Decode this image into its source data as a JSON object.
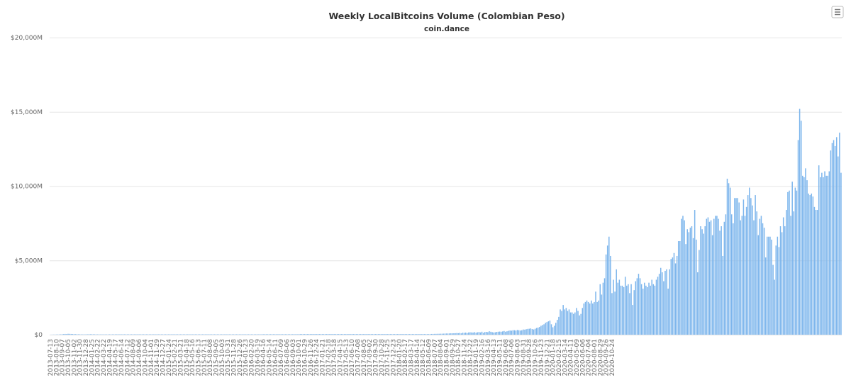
{
  "chart_data": {
    "type": "bar",
    "title": "Weekly LocalBitcoins Volume (Colombian Peso)",
    "subtitle": "coin.dance",
    "xlabel": "",
    "ylabel": "",
    "ylim": [
      0,
      20000
    ],
    "y_unit": "millions COP",
    "y_ticks": [
      "$0",
      "$5,000M",
      "$10,000M",
      "$15,000M",
      "$20,000M"
    ],
    "grid": true,
    "bar_color": "#7cb5ec",
    "start_date": "2013-07-13",
    "x_tick_labels": [
      "2013-07-13",
      "2013-08-10",
      "2013-09-07",
      "2013-10-05",
      "2013-11-02",
      "2013-11-30",
      "2013-12-28",
      "2014-01-25",
      "2014-02-22",
      "2014-03-22",
      "2014-04-19",
      "2014-05-17",
      "2014-06-14",
      "2014-07-12",
      "2014-08-09",
      "2014-09-06",
      "2014-10-04",
      "2014-11-01",
      "2014-11-29",
      "2014-12-27",
      "2015-01-24",
      "2015-02-21",
      "2015-03-21",
      "2015-04-18",
      "2015-05-16",
      "2015-06-13",
      "2015-07-11",
      "2015-08-08",
      "2015-09-05",
      "2015-10-03",
      "2015-10-31",
      "2015-11-28",
      "2015-12-26",
      "2016-01-23",
      "2016-02-20",
      "2016-03-19",
      "2016-04-16",
      "2016-05-14",
      "2016-06-11",
      "2016-07-09",
      "2016-08-06",
      "2016-09-03",
      "2016-10-01",
      "2016-10-29",
      "2016-11-26",
      "2016-12-24",
      "2017-01-21",
      "2017-02-18",
      "2017-03-18",
      "2017-04-15",
      "2017-05-13",
      "2017-06-10",
      "2017-07-08",
      "2017-08-05",
      "2017-09-02",
      "2017-09-30",
      "2017-10-28",
      "2017-11-25",
      "2017-12-23",
      "2018-01-20",
      "2018-02-17",
      "2018-03-17",
      "2018-04-14",
      "2018-05-12",
      "2018-06-09",
      "2018-07-07",
      "2018-08-04",
      "2018-09-01",
      "2018-09-29",
      "2018-10-27",
      "2018-11-24",
      "2018-12-22",
      "2019-01-19",
      "2019-02-16",
      "2019-03-16",
      "2019-04-13",
      "2019-05-11",
      "2019-06-08",
      "2019-07-06",
      "2019-08-03",
      "2019-08-31",
      "2019-09-28",
      "2019-10-26",
      "2019-11-23",
      "2019-12-21",
      "2020-01-18",
      "2020-02-15",
      "2020-03-14",
      "2020-04-11",
      "2020-05-09",
      "2020-06-06",
      "2020-07-04",
      "2020-08-01",
      "2020-08-29",
      "2020-09-26",
      "2020-10-24"
    ],
    "values": [
      5,
      8,
      10,
      12,
      15,
      18,
      20,
      22,
      30,
      40,
      50,
      45,
      60,
      55,
      50,
      45,
      40,
      35,
      30,
      28,
      25,
      22,
      20,
      20,
      22,
      25,
      28,
      30,
      30,
      28,
      25,
      22,
      20,
      20,
      20,
      20,
      20,
      20,
      20,
      20,
      22,
      22,
      22,
      25,
      25,
      25,
      25,
      25,
      25,
      25,
      25,
      25,
      25,
      25,
      25,
      25,
      25,
      25,
      25,
      25,
      25,
      25,
      25,
      25,
      25,
      25,
      25,
      25,
      25,
      25,
      25,
      25,
      25,
      25,
      25,
      25,
      25,
      25,
      25,
      25,
      25,
      25,
      25,
      25,
      25,
      25,
      25,
      25,
      25,
      25,
      25,
      25,
      25,
      25,
      25,
      25,
      25,
      25,
      25,
      25,
      25,
      25,
      25,
      25,
      25,
      25,
      25,
      25,
      25,
      25,
      25,
      25,
      25,
      25,
      25,
      25,
      25,
      25,
      25,
      25,
      25,
      25,
      25,
      25,
      25,
      25,
      25,
      25,
      25,
      25,
      25,
      25,
      25,
      25,
      25,
      25,
      25,
      25,
      25,
      25,
      25,
      25,
      25,
      25,
      30,
      30,
      30,
      30,
      30,
      30,
      30,
      30,
      30,
      30,
      30,
      30,
      30,
      30,
      30,
      30,
      30,
      30,
      30,
      30,
      30,
      30,
      30,
      30,
      30,
      40,
      40,
      40,
      40,
      40,
      40,
      40,
      40,
      40,
      40,
      40,
      40,
      40,
      40,
      40,
      40,
      40,
      40,
      40,
      40,
      40,
      40,
      40,
      40,
      40,
      40,
      40,
      40,
      40,
      40,
      40,
      40,
      40,
      40,
      40,
      40,
      40,
      40,
      40,
      40,
      40,
      40,
      40,
      40,
      40,
      40,
      40,
      40,
      40,
      40,
      40,
      40,
      40,
      40,
      40,
      40,
      40,
      40,
      40,
      40,
      40,
      40,
      40,
      40,
      40,
      40,
      40,
      40,
      40,
      40,
      40,
      40,
      40,
      40,
      40,
      40,
      40,
      40,
      40,
      40,
      40,
      40,
      40,
      40,
      40,
      40,
      40,
      40,
      40,
      50,
      50,
      55,
      55,
      60,
      60,
      65,
      65,
      70,
      75,
      80,
      80,
      85,
      90,
      90,
      95,
      100,
      110,
      100,
      120,
      90,
      130,
      120,
      140,
      110,
      150,
      160,
      150,
      140,
      170,
      130,
      160,
      180,
      150,
      200,
      120,
      180,
      190,
      170,
      230,
      200,
      170,
      150,
      160,
      190,
      200,
      210,
      200,
      220,
      250,
      200,
      230,
      260,
      280,
      270,
      300,
      300,
      280,
      320,
      300,
      280,
      300,
      350,
      340,
      370,
      390,
      400,
      420,
      380,
      350,
      400,
      450,
      480,
      520,
      600,
      650,
      700,
      800,
      850,
      900,
      950,
      700,
      500,
      600,
      800,
      1000,
      1200,
      1700,
      1600,
      2000,
      1700,
      1800,
      1600,
      1700,
      1500,
      1500,
      1400,
      1500,
      1800,
      1600,
      1300,
      1400,
      1800,
      2100,
      2200,
      2300,
      2200,
      2100,
      2300,
      2100,
      2200,
      2900,
      2200,
      2300,
      3400,
      2700,
      3500,
      3800,
      5400,
      6000,
      6600,
      5300,
      2800,
      3700,
      2900,
      4400,
      3500,
      3700,
      3300,
      3300,
      3200,
      3900,
      3300,
      3400,
      2800,
      3400,
      2000,
      3000,
      3600,
      3800,
      4100,
      3800,
      3400,
      3100,
      3500,
      3300,
      3200,
      3500,
      3300,
      3700,
      3400,
      3300,
      3700,
      3900,
      4100,
      4500,
      4200,
      3600,
      4300,
      4400,
      3100,
      4400,
      5100,
      5200,
      5500,
      4800,
      5300,
      6300,
      6300,
      7800,
      8000,
      7700,
      6100,
      7100,
      6900,
      7200,
      7300,
      6500,
      8400,
      6400,
      4200,
      5700,
      7300,
      7100,
      6800,
      7300,
      7800,
      7900,
      7600,
      7700,
      6700,
      7800,
      8000,
      8000,
      7800,
      7000,
      7300,
      5300,
      7600,
      8100,
      10500,
      10200,
      9900,
      8100,
      7500,
      9200,
      9200,
      9200,
      8900,
      7700,
      8000,
      9100,
      8000,
      8600,
      9400,
      9900,
      9200,
      8700,
      7700,
      9400,
      8300,
      6700,
      7800,
      8000,
      7500,
      7200,
      5200,
      6600,
      6600,
      6600,
      6400,
      4700,
      3700,
      6000,
      6600,
      5900,
      7300,
      6900,
      7900,
      7300,
      8400,
      9600,
      9700,
      8000,
      10300,
      8300,
      9900,
      9700,
      13100,
      15200,
      14400,
      10700,
      10600,
      11200,
      10400,
      9500,
      9400,
      9500,
      9300,
      8600,
      8400,
      8400,
      11400,
      10600,
      10900,
      10600,
      11000,
      10700,
      10700,
      11000,
      12400,
      12900,
      13100,
      12700,
      13300,
      12000,
      13600,
      10900
    ]
  },
  "ui": {
    "menu_icon": "hamburger-menu-icon"
  }
}
